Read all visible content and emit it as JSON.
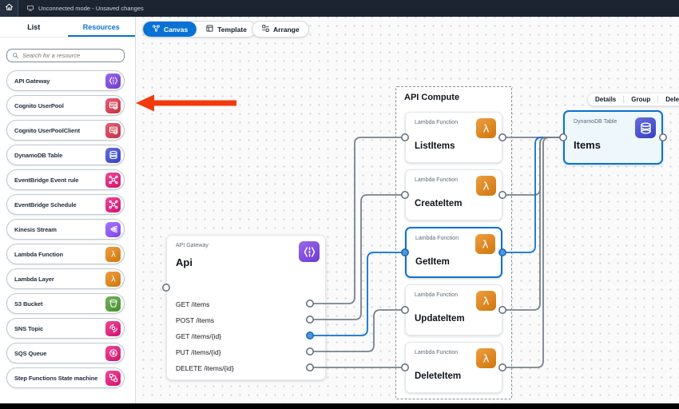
{
  "topbar": {
    "status": "Unconnected mode - Unsaved changes"
  },
  "sidebar": {
    "tabs": [
      {
        "label": "List",
        "active": false
      },
      {
        "label": "Resources",
        "active": true
      }
    ],
    "search_placeholder": "Search for a resource",
    "resources": [
      {
        "label": "API Gateway",
        "icon": "api-gateway-icon",
        "color": "#7b40e8"
      },
      {
        "label": "Cognito UserPool",
        "icon": "cognito-icon",
        "color": "#dd344c"
      },
      {
        "label": "Cognito UserPoolClient",
        "icon": "cognito-icon",
        "color": "#dd344c"
      },
      {
        "label": "DynamoDB Table",
        "icon": "dynamodb-icon",
        "color": "#3b46d6"
      },
      {
        "label": "EventBridge Event rule",
        "icon": "eventbridge-icon",
        "color": "#e7157b"
      },
      {
        "label": "EventBridge Schedule",
        "icon": "eventbridge-icon",
        "color": "#e7157b"
      },
      {
        "label": "Kinesis Stream",
        "icon": "kinesis-icon",
        "color": "#8c4fff"
      },
      {
        "label": "Lambda Function",
        "icon": "lambda-icon",
        "color": "#e8830c"
      },
      {
        "label": "Lambda Layer",
        "icon": "lambda-icon",
        "color": "#e8830c"
      },
      {
        "label": "S3 Bucket",
        "icon": "s3-bucket-icon",
        "color": "#4d9e31"
      },
      {
        "label": "SNS Topic",
        "icon": "sns-icon",
        "color": "#e7157b"
      },
      {
        "label": "SQS Queue",
        "icon": "sqs-icon",
        "color": "#e7157b"
      },
      {
        "label": "Step Functions State machine",
        "icon": "stepfunctions-icon",
        "color": "#e7157b"
      }
    ]
  },
  "toolbar": {
    "canvas_label": "Canvas",
    "template_label": "Template",
    "arrange_label": "Arrange"
  },
  "canvas": {
    "api_card": {
      "type_label": "API Gateway",
      "title": "Api",
      "icon": "api-gateway-icon",
      "color": "#7b40e8",
      "routes": [
        {
          "label": "GET /items"
        },
        {
          "label": "POST /items"
        },
        {
          "label": "GET /items/{id}",
          "selected": true
        },
        {
          "label": "PUT /items/{id}"
        },
        {
          "label": "DELETE /items/{id}"
        }
      ]
    },
    "group": {
      "title": "API Compute",
      "functions": [
        {
          "type_label": "Lambda Function",
          "name": "ListItems"
        },
        {
          "type_label": "Lambda Function",
          "name": "CreateItem"
        },
        {
          "type_label": "Lambda Function",
          "name": "GetItem",
          "selected": true
        },
        {
          "type_label": "Lambda Function",
          "name": "UpdateItem"
        },
        {
          "type_label": "Lambda Function",
          "name": "DeleteItem"
        }
      ],
      "function_icon": "lambda-icon",
      "function_color": "#e8830c"
    },
    "table_card": {
      "type_label": "DynamoDB Table",
      "title": "Items",
      "icon": "dynamodb-icon",
      "color": "#3b46d6",
      "selected": true
    },
    "context_toolbar": {
      "items": [
        {
          "label": "Details"
        },
        {
          "label": "Group"
        },
        {
          "label": "Delete"
        }
      ]
    },
    "connections": [
      {
        "from": "GET /items",
        "to": "ListItems"
      },
      {
        "from": "POST /items",
        "to": "CreateItem"
      },
      {
        "from": "GET /items/{id}",
        "to": "GetItem",
        "selected": true
      },
      {
        "from": "PUT /items/{id}",
        "to": "UpdateItem"
      },
      {
        "from": "DELETE /items/{id}",
        "to": "DeleteItem"
      },
      {
        "from": "ListItems",
        "to": "Items"
      },
      {
        "from": "CreateItem",
        "to": "Items"
      },
      {
        "from": "GetItem",
        "to": "Items",
        "selected": true
      },
      {
        "from": "UpdateItem",
        "to": "Items"
      },
      {
        "from": "DeleteItem",
        "to": "Items"
      }
    ],
    "colors": {
      "accent": "#0972d3",
      "line": "#78828c",
      "selected_line": "#0972d3",
      "arrow": "#f23a0d",
      "port_fill": "#ffffff",
      "port_selected": "#4c96dd"
    }
  }
}
